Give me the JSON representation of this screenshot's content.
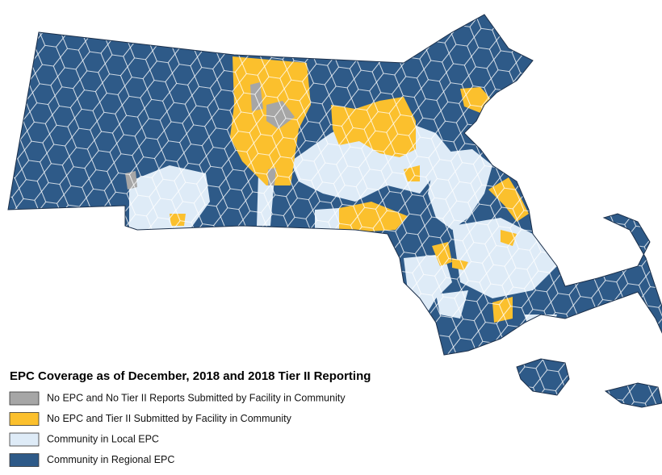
{
  "legend": {
    "title": "EPC Coverage as of December, 2018 and 2018 Tier II Reporting",
    "items": [
      {
        "label": "No EPC and No Tier II Reports Submitted by Facility in Community",
        "color": "#a6a6a6"
      },
      {
        "label": "No EPC and Tier II Submitted by Facility in Community",
        "color": "#fbc02d"
      },
      {
        "label": "Community in Local EPC",
        "color": "#deebf7"
      },
      {
        "label": "Community in Regional EPC",
        "color": "#2e5a88"
      }
    ]
  }
}
